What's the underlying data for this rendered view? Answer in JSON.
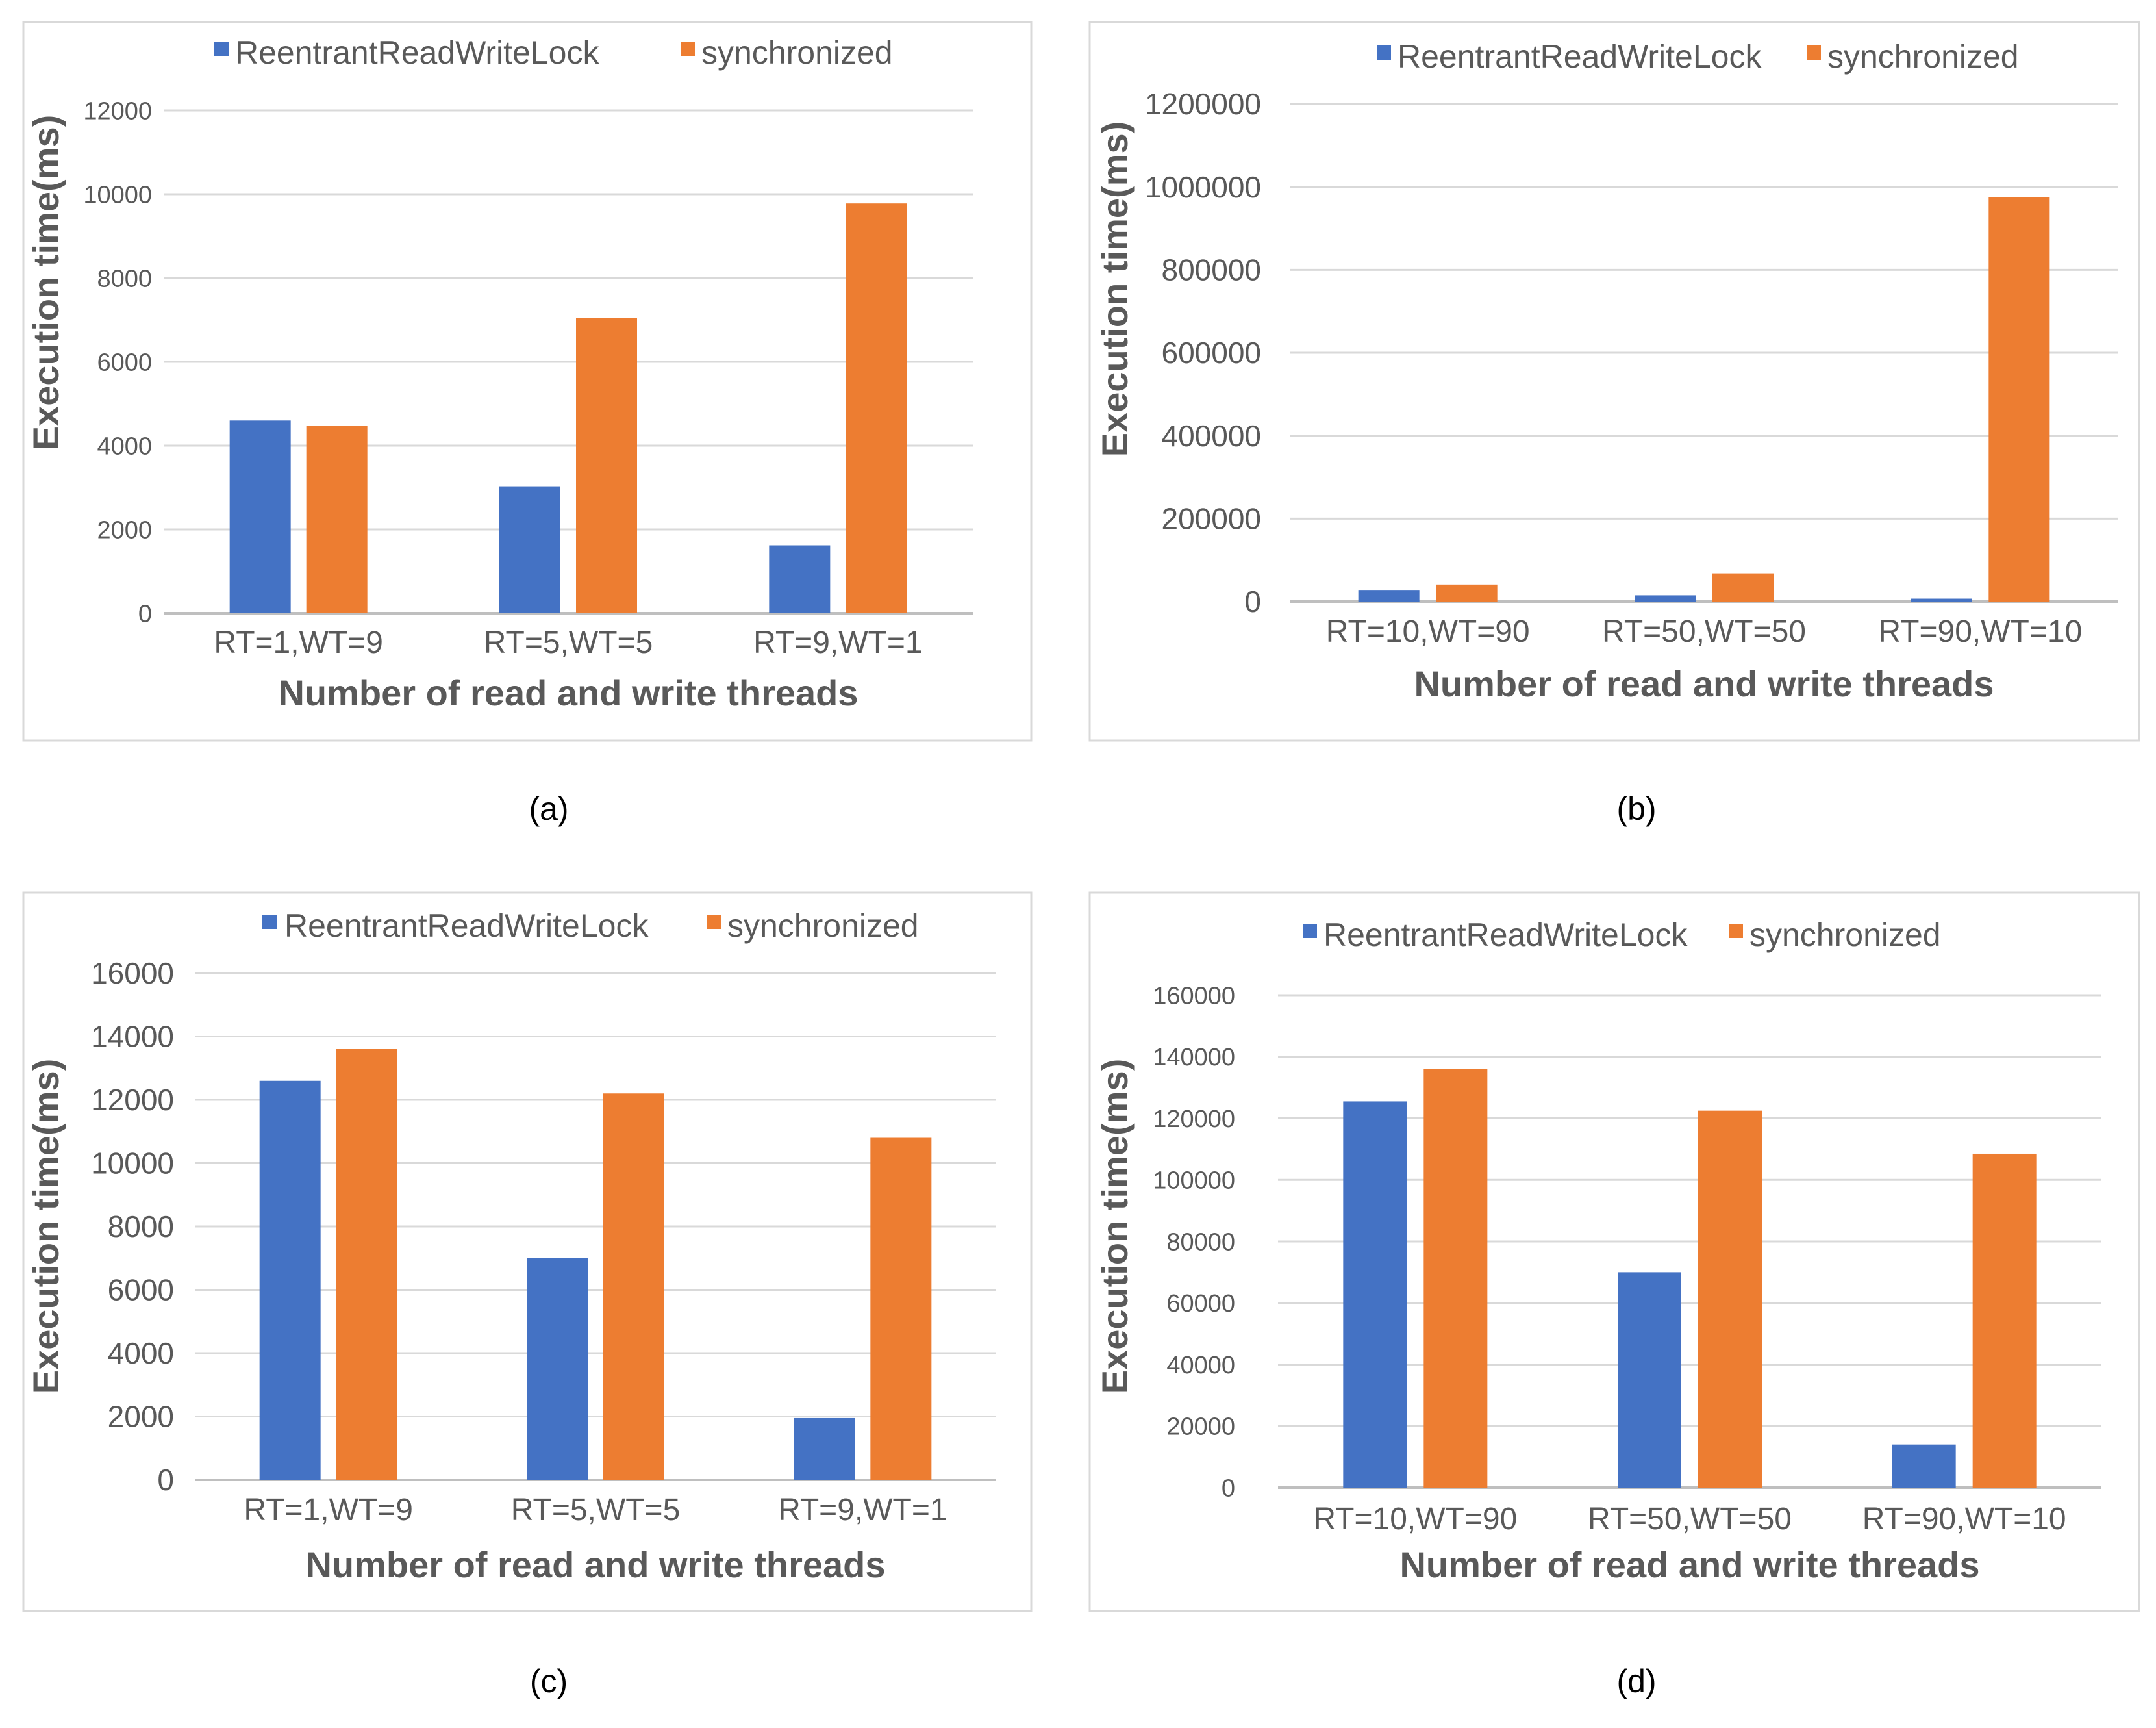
{
  "colors": {
    "series1": "#4472C4",
    "series2": "#ED7D31",
    "grid": "#D9D9D9",
    "axis": "#BFBFBF",
    "frame": "#D9D9D9",
    "text": "#595959"
  },
  "chart_data": [
    {
      "type": "bar",
      "caption": "(a)",
      "title": "",
      "xlabel": "Number of read and write threads",
      "ylabel": "Execution time(ms)",
      "categories": [
        "RT=1,WT=9",
        "RT=5,WT=5",
        "RT=9,WT=1"
      ],
      "ylim": [
        0,
        12000
      ],
      "yticks": [
        0,
        2000,
        4000,
        6000,
        8000,
        10000,
        12000
      ],
      "yticklabels": [
        "0",
        "2000",
        "4000",
        "6000",
        "8000",
        "10000",
        "12000"
      ],
      "legend": "top",
      "series": [
        {
          "name": "ReentrantReadWriteLock",
          "values": [
            4600,
            3030,
            1620
          ]
        },
        {
          "name": "synchronized",
          "values": [
            4480,
            7040,
            9780
          ]
        }
      ]
    },
    {
      "type": "bar",
      "caption": "(b)",
      "title": "",
      "xlabel": "Number of read and write threads",
      "ylabel": "Execution time(ms)",
      "categories": [
        "RT=10,WT=90",
        "RT=50,WT=50",
        "RT=90,WT=10"
      ],
      "ylim": [
        0,
        1200000
      ],
      "yticks": [
        0,
        200000,
        400000,
        600000,
        800000,
        1000000,
        1200000
      ],
      "yticklabels": [
        "0",
        "200000",
        "400000",
        "600000",
        "800000",
        "1000000",
        "1200000"
      ],
      "legend": "top",
      "series": [
        {
          "name": "ReentrantReadWriteLock",
          "values": [
            28000,
            15000,
            7000
          ]
        },
        {
          "name": "synchronized",
          "values": [
            41000,
            68000,
            975000
          ]
        }
      ]
    },
    {
      "type": "bar",
      "caption": "(c)",
      "title": "",
      "xlabel": "Number of read and write threads",
      "ylabel": "Execution time(ms)",
      "categories": [
        "RT=1,WT=9",
        "RT=5,WT=5",
        "RT=9,WT=1"
      ],
      "ylim": [
        0,
        16000
      ],
      "yticks": [
        0,
        2000,
        4000,
        6000,
        8000,
        10000,
        12000,
        14000,
        16000
      ],
      "yticklabels": [
        "0",
        "2000",
        "4000",
        "6000",
        "8000",
        "10000",
        "12000",
        "14000",
        "16000"
      ],
      "legend": "top",
      "series": [
        {
          "name": "ReentrantReadWriteLock",
          "values": [
            12600,
            7000,
            1950
          ]
        },
        {
          "name": "synchronized",
          "values": [
            13600,
            12200,
            10800
          ]
        }
      ]
    },
    {
      "type": "bar",
      "caption": "(d)",
      "title": "",
      "xlabel": "Number of read and write threads",
      "ylabel": "Execution time(ms)",
      "categories": [
        "RT=10,WT=90",
        "RT=50,WT=50",
        "RT=90,WT=10"
      ],
      "ylim": [
        0,
        160000
      ],
      "yticks": [
        0,
        20000,
        40000,
        60000,
        80000,
        100000,
        120000,
        140000,
        160000
      ],
      "yticklabels": [
        "0",
        "20000",
        "40000",
        "60000",
        "80000",
        "100000",
        "120000",
        "140000",
        "160000"
      ],
      "legend": "top",
      "series": [
        {
          "name": "ReentrantReadWriteLock",
          "values": [
            125500,
            70000,
            14000
          ]
        },
        {
          "name": "synchronized",
          "values": [
            136000,
            122500,
            108500
          ]
        }
      ]
    }
  ]
}
